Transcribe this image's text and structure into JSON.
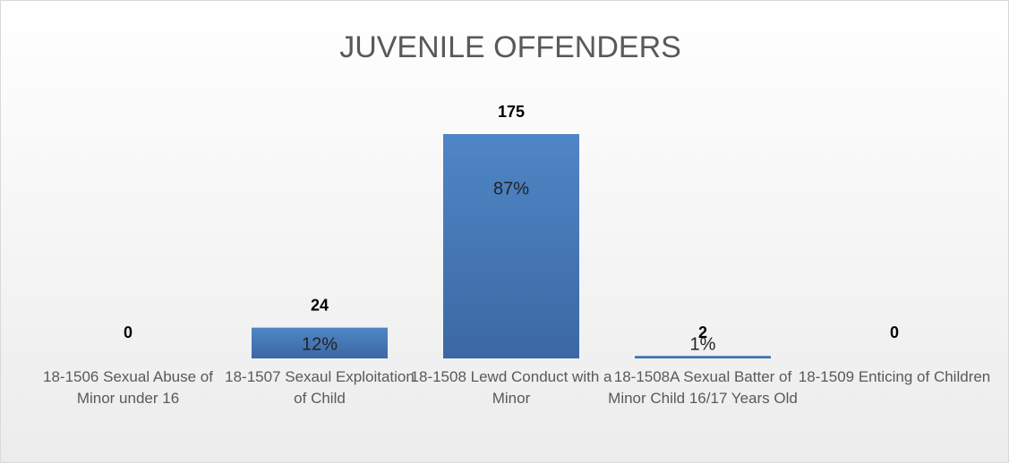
{
  "chart_data": {
    "type": "bar",
    "title": "JUVENILE OFFENDERS",
    "categories": [
      "18-1506 Sexual Abuse of Minor under 16",
      "18-1507 Sexaul Exploitation of Child",
      "18-1508 Lewd Conduct with a Minor",
      "18-1508A Sexual Batter of Minor Child 16/17 Years Old",
      "18-1509 Enticing of Children"
    ],
    "values": [
      0,
      24,
      175,
      2,
      0
    ],
    "share_labels": [
      null,
      "12%",
      "87%",
      "1%",
      null
    ],
    "color": "#4a7ab8"
  }
}
